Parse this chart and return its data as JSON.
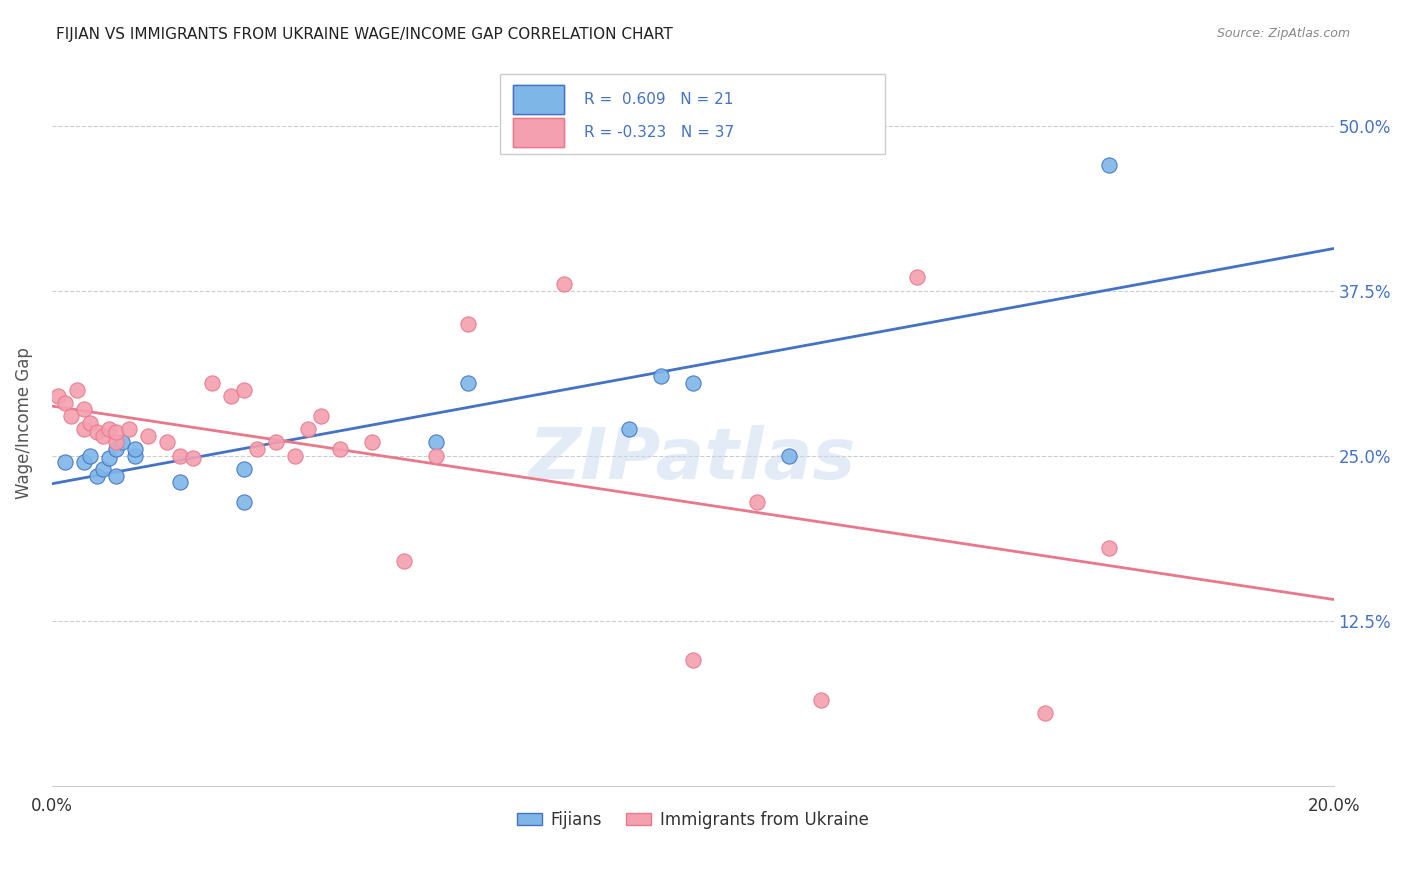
{
  "title": "FIJIAN VS IMMIGRANTS FROM UKRAINE WAGE/INCOME GAP CORRELATION CHART",
  "source": "Source: ZipAtlas.com",
  "xlabel_bottom": "",
  "ylabel": "Wage/Income Gap",
  "xlim": [
    0.0,
    0.2
  ],
  "ylim": [
    0.0,
    0.55
  ],
  "xtick_labels": [
    "0.0%",
    "",
    "",
    "",
    "20.0%"
  ],
  "ytick_labels": [
    "12.5%",
    "25.0%",
    "37.5%",
    "50.0%"
  ],
  "ytick_positions": [
    0.125,
    0.25,
    0.375,
    0.5
  ],
  "legend_labels": [
    "Fijians",
    "Immigrants from Ukraine"
  ],
  "R_fijian": 0.609,
  "N_fijian": 21,
  "R_ukraine": -0.323,
  "N_ukraine": 37,
  "color_fijian": "#7EB6E8",
  "color_ukraine": "#F4A0B0",
  "line_color_fijian": "#4472C4",
  "line_color_ukraine": "#E8788A",
  "watermark": "ZIPatlas",
  "fijian_x": [
    0.002,
    0.005,
    0.006,
    0.007,
    0.008,
    0.009,
    0.01,
    0.01,
    0.011,
    0.013,
    0.013,
    0.02,
    0.03,
    0.03,
    0.06,
    0.065,
    0.09,
    0.095,
    0.1,
    0.115,
    0.165
  ],
  "fijian_y": [
    0.245,
    0.245,
    0.25,
    0.235,
    0.24,
    0.248,
    0.235,
    0.255,
    0.26,
    0.25,
    0.255,
    0.23,
    0.215,
    0.24,
    0.26,
    0.305,
    0.27,
    0.31,
    0.305,
    0.25,
    0.47
  ],
  "ukraine_x": [
    0.001,
    0.002,
    0.003,
    0.004,
    0.005,
    0.005,
    0.006,
    0.007,
    0.008,
    0.009,
    0.01,
    0.01,
    0.012,
    0.015,
    0.018,
    0.02,
    0.022,
    0.025,
    0.028,
    0.03,
    0.032,
    0.035,
    0.038,
    0.04,
    0.042,
    0.045,
    0.05,
    0.055,
    0.06,
    0.065,
    0.08,
    0.1,
    0.11,
    0.12,
    0.135,
    0.155,
    0.165
  ],
  "ukraine_y": [
    0.295,
    0.29,
    0.28,
    0.3,
    0.285,
    0.27,
    0.275,
    0.268,
    0.265,
    0.27,
    0.26,
    0.268,
    0.27,
    0.265,
    0.26,
    0.25,
    0.248,
    0.305,
    0.295,
    0.3,
    0.255,
    0.26,
    0.25,
    0.27,
    0.28,
    0.255,
    0.26,
    0.17,
    0.25,
    0.35,
    0.38,
    0.095,
    0.215,
    0.065,
    0.385,
    0.055,
    0.18
  ]
}
